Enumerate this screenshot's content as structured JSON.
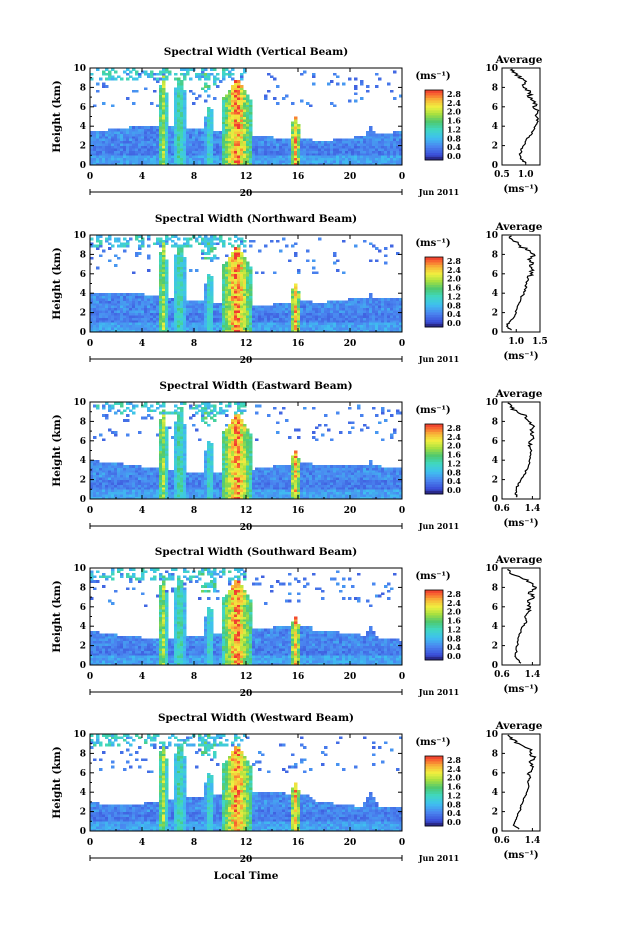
{
  "figure": {
    "shared": {
      "ylabel": "Height (km)",
      "yticks": [
        "0",
        "2",
        "4",
        "6",
        "8",
        "10"
      ],
      "xticks": [
        "0",
        "4",
        "8",
        "12",
        "16",
        "20",
        "0"
      ],
      "date_day": "20",
      "date_label": "Jun 2011",
      "xlabel": "Local Time",
      "colorbar_unit": "(ms⁻¹)",
      "colorbar_ticks": [
        "0.0",
        "0.4",
        "0.8",
        "1.2",
        "1.6",
        "2.0",
        "2.4",
        "2.8"
      ],
      "avg_title": "Average",
      "avg_xlabel": "(ms⁻¹)"
    }
  },
  "chart_data": [
    {
      "type": "heatmap",
      "title": "Spectral Width (Vertical Beam)",
      "xlabel": "",
      "ylabel": "Height (km)",
      "xlim": [
        0,
        24
      ],
      "ylim": [
        0,
        10
      ],
      "colorbar": {
        "unit": "ms^-1",
        "range": [
          0.0,
          2.8
        ]
      },
      "profile": {
        "title": "Average",
        "xlim": [
          0.5,
          1.3
        ],
        "xticks": [
          "0.5",
          "1.0"
        ],
        "height": [
          0.2,
          0.6,
          1.0,
          1.5,
          2.0,
          2.5,
          3.0,
          3.5,
          4.0,
          4.5,
          5.0,
          5.5,
          6.0,
          6.5,
          7.0,
          7.5,
          8.0,
          8.5,
          9.0,
          9.5,
          9.9
        ],
        "width": [
          1.0,
          0.9,
          0.88,
          0.9,
          0.95,
          1.0,
          1.08,
          1.15,
          1.2,
          1.26,
          1.22,
          1.25,
          1.15,
          1.2,
          1.05,
          1.1,
          0.95,
          0.98,
          0.85,
          0.78,
          0.72
        ]
      }
    },
    {
      "type": "heatmap",
      "title": "Spectral Width (Northward Beam)",
      "xlabel": "",
      "ylabel": "Height (km)",
      "xlim": [
        0,
        24
      ],
      "ylim": [
        0,
        10
      ],
      "colorbar": {
        "unit": "ms^-1",
        "range": [
          0.0,
          2.8
        ]
      },
      "profile": {
        "title": "Average",
        "xlim": [
          0.7,
          1.5
        ],
        "xticks": [
          "1.0",
          "1.5"
        ],
        "height": [
          0.2,
          0.6,
          1.0,
          1.5,
          2.0,
          2.5,
          3.0,
          3.5,
          4.0,
          4.5,
          5.0,
          5.5,
          6.0,
          6.5,
          7.0,
          7.5,
          8.0,
          8.5,
          9.0,
          9.5,
          9.9
        ],
        "width": [
          0.9,
          0.8,
          0.85,
          0.95,
          1.0,
          1.02,
          1.06,
          1.1,
          1.16,
          1.2,
          1.22,
          1.25,
          1.3,
          1.32,
          1.35,
          1.25,
          1.38,
          1.2,
          1.05,
          0.92,
          0.9
        ]
      }
    },
    {
      "type": "heatmap",
      "title": "Spectral Width (Eastward Beam)",
      "xlabel": "",
      "ylabel": "Height (km)",
      "xlim": [
        0,
        24
      ],
      "ylim": [
        0,
        10
      ],
      "colorbar": {
        "unit": "ms^-1",
        "range": [
          0.0,
          2.8
        ]
      },
      "profile": {
        "title": "Average",
        "xlim": [
          0.6,
          1.6
        ],
        "xticks": [
          "0.6",
          "1.4"
        ],
        "height": [
          0.2,
          0.6,
          1.0,
          1.5,
          2.0,
          2.5,
          3.0,
          3.5,
          4.0,
          4.5,
          5.0,
          5.5,
          6.0,
          6.5,
          7.0,
          7.5,
          8.0,
          8.5,
          9.0,
          9.5,
          9.9
        ],
        "width": [
          1.0,
          0.95,
          0.98,
          1.02,
          1.1,
          1.18,
          1.25,
          1.3,
          1.32,
          1.35,
          1.38,
          1.3,
          1.35,
          1.42,
          1.38,
          1.45,
          1.3,
          1.25,
          1.0,
          0.82,
          0.75
        ]
      }
    },
    {
      "type": "heatmap",
      "title": "Spectral Width (Southward Beam)",
      "xlabel": "",
      "ylabel": "Height (km)",
      "xlim": [
        0,
        24
      ],
      "ylim": [
        0,
        10
      ],
      "colorbar": {
        "unit": "ms^-1",
        "range": [
          0.0,
          2.8
        ]
      },
      "profile": {
        "title": "Average",
        "xlim": [
          0.6,
          1.6
        ],
        "xticks": [
          "0.6",
          "1.4"
        ],
        "height": [
          0.2,
          0.6,
          1.0,
          1.5,
          2.0,
          2.5,
          3.0,
          3.5,
          4.0,
          4.5,
          5.0,
          5.5,
          6.0,
          6.5,
          7.0,
          7.5,
          8.0,
          8.5,
          9.0,
          9.5,
          9.9
        ],
        "width": [
          1.1,
          1.0,
          0.95,
          0.98,
          1.0,
          1.02,
          1.05,
          1.1,
          1.15,
          1.25,
          1.2,
          1.3,
          1.35,
          1.28,
          1.45,
          1.3,
          1.5,
          1.35,
          1.1,
          0.8,
          0.75
        ]
      }
    },
    {
      "type": "heatmap",
      "title": "Spectral Width (Westward Beam)",
      "xlabel": "Local Time",
      "ylabel": "Height (km)",
      "xlim": [
        0,
        24
      ],
      "ylim": [
        0,
        10
      ],
      "colorbar": {
        "unit": "ms^-1",
        "range": [
          0.0,
          2.8
        ]
      },
      "profile": {
        "title": "Average",
        "xlim": [
          0.6,
          1.6
        ],
        "xticks": [
          "0.6",
          "1.4"
        ],
        "height": [
          0.2,
          0.6,
          1.0,
          1.5,
          2.0,
          2.5,
          3.0,
          3.5,
          4.0,
          4.5,
          5.0,
          5.5,
          6.0,
          6.5,
          7.0,
          7.5,
          8.0,
          8.5,
          9.0,
          9.5,
          9.9
        ],
        "width": [
          1.05,
          0.9,
          0.95,
          1.0,
          1.05,
          1.1,
          1.15,
          1.2,
          1.25,
          1.3,
          1.28,
          1.35,
          1.3,
          1.4,
          1.35,
          1.45,
          1.38,
          1.3,
          1.05,
          0.82,
          0.75
        ]
      }
    }
  ]
}
